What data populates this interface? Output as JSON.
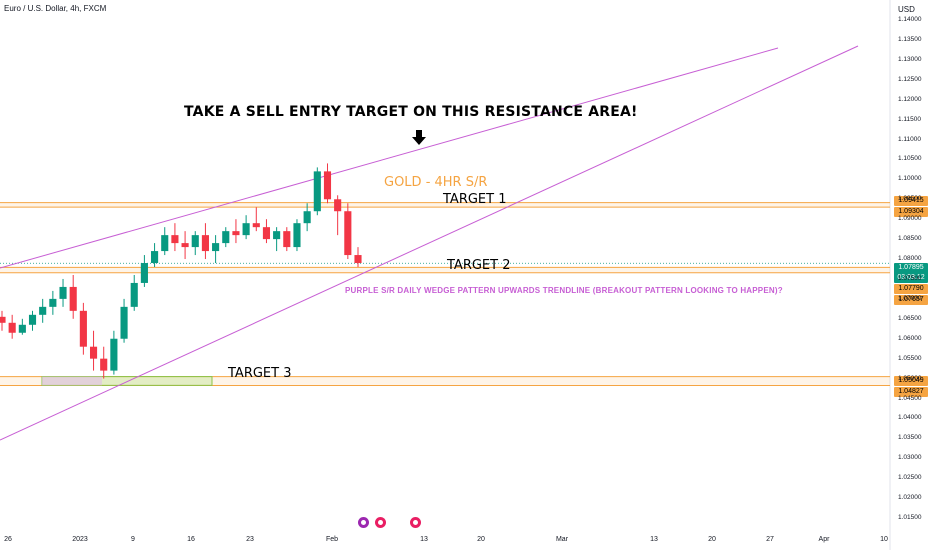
{
  "header": {
    "symbol": "Euro / U.S. Dollar, 4h, FXCM",
    "currency": "USD"
  },
  "annotations": {
    "headline": "TAKE A SELL ENTRY TARGET ON THIS RESISTANCE AREA!",
    "gold_label": "GOLD - 4HR S/R",
    "target1": "TARGET 1",
    "target2": "TARGET 2",
    "target3": "TARGET 3",
    "purple_note": "PURPLE S/R DAILY WEDGE PATTERN UPWARDS TRENDLINE (BREAKOUT PATTERN LOOKING TO HAPPEN)?"
  },
  "price_tags": {
    "p1": "1.09415",
    "p2": "1.09304",
    "current": "1.07895",
    "countdown": "03:03:12",
    "p3": "1.07790",
    "p4": "1.07657",
    "p5": "1.05049",
    "p6": "1.04827"
  },
  "colors": {
    "up": "#089981",
    "down": "#f23645",
    "sr": "#f5a442",
    "trend": "#c75fd4",
    "zone": "#c8e6a0"
  },
  "chart_data": {
    "type": "candlestick",
    "y_ticks": [
      "1.14000",
      "1.13500",
      "1.13000",
      "1.12500",
      "1.12000",
      "1.11500",
      "1.11000",
      "1.10500",
      "1.10000",
      "1.09500",
      "1.09000",
      "1.08500",
      "1.08000",
      "1.07500",
      "1.07000",
      "1.06500",
      "1.06000",
      "1.05500",
      "1.05000",
      "1.04500",
      "1.04000",
      "1.03500",
      "1.03000",
      "1.02500",
      "1.02000",
      "1.01500"
    ],
    "x_ticks": [
      "26",
      "2023",
      "9",
      "16",
      "23",
      "Feb",
      "13",
      "20",
      "Mar",
      "13",
      "20",
      "27",
      "Apr",
      "10"
    ],
    "ylim": [
      1.0125,
      1.1425
    ],
    "sr_levels": [
      1.09415,
      1.09304,
      1.0779,
      1.07657,
      1.05049,
      1.04827
    ],
    "current_price": 1.07895,
    "series": [
      {
        "values": [
          [
            1.0655,
            1.067,
            1.062,
            1.064
          ],
          [
            1.064,
            1.066,
            1.06,
            1.0615
          ],
          [
            1.0615,
            1.065,
            1.061,
            1.0635
          ],
          [
            1.0635,
            1.067,
            1.062,
            1.066
          ],
          [
            1.066,
            1.07,
            1.064,
            1.068
          ],
          [
            1.068,
            1.072,
            1.066,
            1.07
          ],
          [
            1.07,
            1.075,
            1.068,
            1.073
          ],
          [
            1.073,
            1.076,
            1.065,
            1.067
          ],
          [
            1.067,
            1.069,
            1.056,
            1.058
          ],
          [
            1.058,
            1.062,
            1.052,
            1.055
          ],
          [
            1.055,
            1.058,
            1.05,
            1.052
          ],
          [
            1.052,
            1.062,
            1.051,
            1.06
          ],
          [
            1.06,
            1.07,
            1.059,
            1.068
          ],
          [
            1.068,
            1.076,
            1.067,
            1.074
          ],
          [
            1.074,
            1.081,
            1.073,
            1.079
          ],
          [
            1.079,
            1.084,
            1.078,
            1.082
          ],
          [
            1.082,
            1.088,
            1.081,
            1.086
          ],
          [
            1.086,
            1.089,
            1.082,
            1.084
          ],
          [
            1.084,
            1.087,
            1.08,
            1.083
          ],
          [
            1.083,
            1.087,
            1.081,
            1.086
          ],
          [
            1.086,
            1.089,
            1.08,
            1.082
          ],
          [
            1.082,
            1.086,
            1.079,
            1.084
          ],
          [
            1.084,
            1.088,
            1.083,
            1.087
          ],
          [
            1.087,
            1.09,
            1.084,
            1.086
          ],
          [
            1.086,
            1.091,
            1.085,
            1.089
          ],
          [
            1.089,
            1.093,
            1.087,
            1.088
          ],
          [
            1.088,
            1.09,
            1.084,
            1.085
          ],
          [
            1.085,
            1.088,
            1.082,
            1.087
          ],
          [
            1.087,
            1.088,
            1.082,
            1.083
          ],
          [
            1.083,
            1.09,
            1.082,
            1.089
          ],
          [
            1.089,
            1.094,
            1.087,
            1.092
          ],
          [
            1.092,
            1.103,
            1.091,
            1.102
          ],
          [
            1.102,
            1.104,
            1.094,
            1.095
          ],
          [
            1.095,
            1.096,
            1.086,
            1.092
          ],
          [
            1.092,
            1.094,
            1.08,
            1.081
          ],
          [
            1.081,
            1.083,
            1.078,
            1.079
          ]
        ]
      }
    ]
  }
}
